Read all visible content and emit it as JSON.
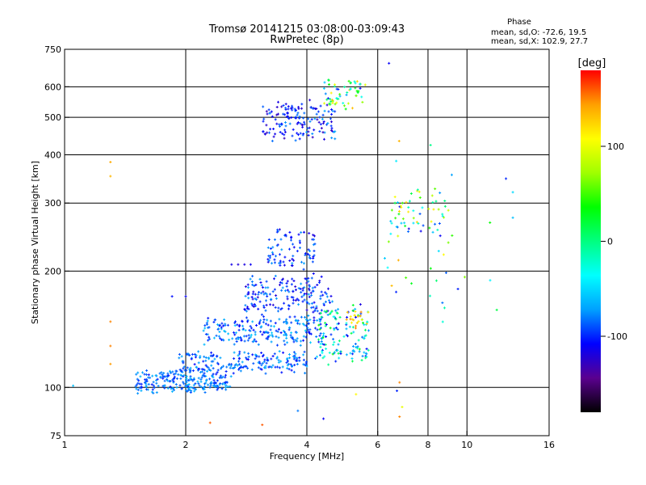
{
  "header": {
    "title": "Tromsø 20141215 03:08:00-03:09:43",
    "subtitle": "RwPretec (8p)"
  },
  "phase_box": {
    "heading": "Phase",
    "line_o": "mean, sd,O: -72.6, 19.5",
    "line_x": "mean, sd,X: 102.9, 27.7"
  },
  "colorbar": {
    "label": "[deg]",
    "ticks": [
      {
        "value": 100,
        "label": "100"
      },
      {
        "value": 0,
        "label": "0"
      },
      {
        "value": -100,
        "label": "-100"
      }
    ],
    "range": [
      -180,
      180
    ],
    "colormap": [
      "#000000",
      "#5a008f",
      "#0000ff",
      "#00a0ff",
      "#00ffff",
      "#00ff80",
      "#00ff00",
      "#a0ff00",
      "#ffff00",
      "#ffa000",
      "#ff0000"
    ]
  },
  "chart_data": {
    "type": "scatter",
    "xlabel": "Frequency [MHz]",
    "ylabel": "Stationary phase Virtual Height [km]",
    "xscale": "log",
    "yscale": "log",
    "xlim": [
      1,
      16
    ],
    "ylim": [
      75,
      750
    ],
    "xticks": [
      {
        "value": 1,
        "label": "1"
      },
      {
        "value": 2,
        "label": "2"
      },
      {
        "value": 4,
        "label": "4"
      },
      {
        "value": 6,
        "label": "6"
      },
      {
        "value": 8,
        "label": "8"
      },
      {
        "value": 10,
        "label": "10"
      },
      {
        "value": 16,
        "label": "16"
      }
    ],
    "yticks": [
      {
        "value": 75,
        "label": "75"
      },
      {
        "value": 100,
        "label": "100"
      },
      {
        "value": 200,
        "label": "200"
      },
      {
        "value": 300,
        "label": "300"
      },
      {
        "value": 400,
        "label": "400"
      },
      {
        "value": 500,
        "label": "500"
      },
      {
        "value": 600,
        "label": "600"
      },
      {
        "value": 750,
        "label": "750"
      }
    ],
    "grid": true,
    "grid_x": [
      2,
      4,
      6,
      8,
      10
    ],
    "grid_y": [
      100,
      200,
      300,
      400,
      500,
      600
    ],
    "color_encoding": "phase [deg]",
    "clusters": [
      {
        "f": [
          1.5,
          2.6
        ],
        "h": [
          96,
          112
        ],
        "phase": [
          -105,
          -60
        ],
        "n": 230
      },
      {
        "f": [
          1.9,
          4.0
        ],
        "h": [
          108,
          125
        ],
        "phase": [
          -110,
          -65
        ],
        "n": 200
      },
      {
        "f": [
          2.2,
          4.5
        ],
        "h": [
          128,
          155
        ],
        "phase": [
          -110,
          -55
        ],
        "n": 220
      },
      {
        "f": [
          2.8,
          4.6
        ],
        "h": [
          150,
          200
        ],
        "phase": [
          -125,
          -70
        ],
        "n": 180
      },
      {
        "f": [
          3.2,
          4.2
        ],
        "h": [
          200,
          265
        ],
        "phase": [
          -120,
          -70
        ],
        "n": 80
      },
      {
        "f": [
          4.2,
          5.7
        ],
        "h": [
          110,
          170
        ],
        "phase": [
          -120,
          40
        ],
        "n": 130
      },
      {
        "f": [
          5.0,
          5.7
        ],
        "h": [
          140,
          160
        ],
        "phase": [
          110,
          150
        ],
        "n": 20
      },
      {
        "f": [
          3.1,
          4.7
        ],
        "h": [
          430,
          560
        ],
        "phase": [
          -130,
          -70
        ],
        "n": 150
      },
      {
        "f": [
          4.4,
          5.6
        ],
        "h": [
          520,
          650
        ],
        "phase": [
          -110,
          140
        ],
        "n": 60
      },
      {
        "f": [
          6.4,
          9.0
        ],
        "h": [
          240,
          330
        ],
        "phase": [
          -120,
          130
        ],
        "n": 60
      },
      {
        "f": [
          6.2,
          12.0
        ],
        "h": [
          140,
          460
        ],
        "phase": [
          -110,
          150
        ],
        "n": 30
      }
    ],
    "points": [
      {
        "f": 2.6,
        "h": 208,
        "phase": -115
      },
      {
        "f": 2.7,
        "h": 208,
        "phase": -120
      },
      {
        "f": 2.8,
        "h": 208,
        "phase": -118
      },
      {
        "f": 2.9,
        "h": 208,
        "phase": -112
      },
      {
        "f": 1.85,
        "h": 172,
        "phase": -105
      },
      {
        "f": 2.0,
        "h": 172,
        "phase": -110
      },
      {
        "f": 1.3,
        "h": 383,
        "phase": 140
      },
      {
        "f": 1.3,
        "h": 352,
        "phase": 135
      },
      {
        "f": 1.3,
        "h": 148,
        "phase": 150
      },
      {
        "f": 1.3,
        "h": 128,
        "phase": 150
      },
      {
        "f": 1.3,
        "h": 115,
        "phase": 145
      },
      {
        "f": 1.05,
        "h": 101,
        "phase": -60
      },
      {
        "f": 2.3,
        "h": 81,
        "phase": 160
      },
      {
        "f": 3.1,
        "h": 80,
        "phase": 160
      },
      {
        "f": 4.4,
        "h": 83,
        "phase": -110
      },
      {
        "f": 5.3,
        "h": 96,
        "phase": 110
      },
      {
        "f": 6.8,
        "h": 84,
        "phase": 150
      },
      {
        "f": 6.9,
        "h": 89,
        "phase": 100
      },
      {
        "f": 6.8,
        "h": 103,
        "phase": 150
      },
      {
        "f": 6.7,
        "h": 98,
        "phase": -100
      },
      {
        "f": 3.8,
        "h": 87,
        "phase": -80
      },
      {
        "f": 6.4,
        "h": 690,
        "phase": -110
      },
      {
        "f": 12.5,
        "h": 347,
        "phase": -100
      },
      {
        "f": 13.0,
        "h": 275,
        "phase": -60
      },
      {
        "f": 13.0,
        "h": 320,
        "phase": -50
      }
    ]
  }
}
